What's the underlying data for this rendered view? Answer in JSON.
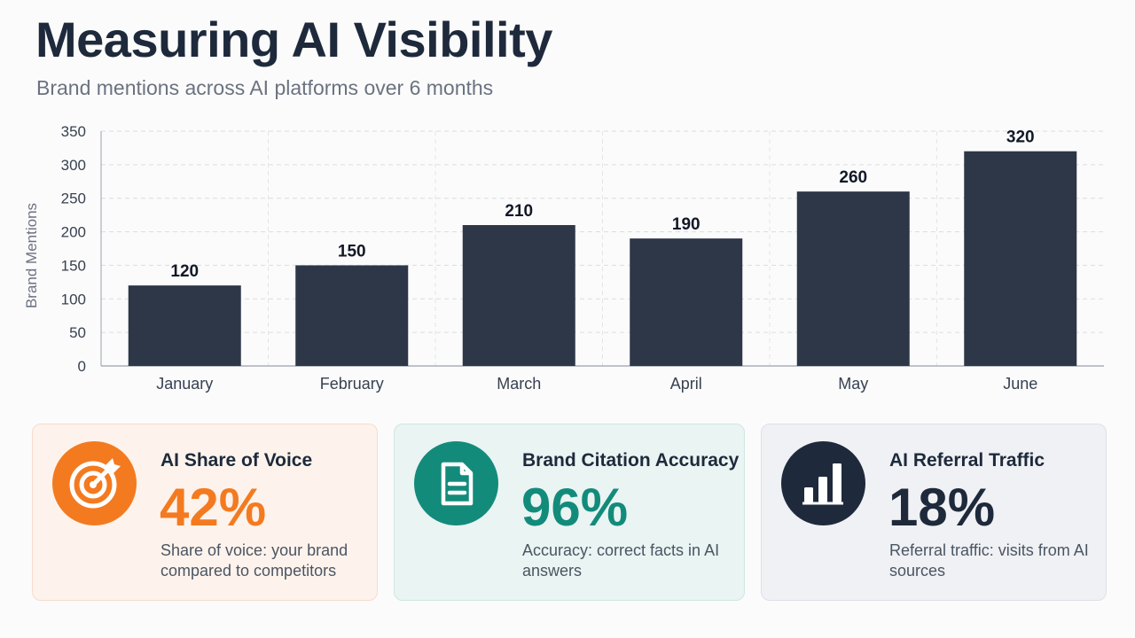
{
  "header": {
    "title": "Measuring AI Visibility",
    "subtitle": "Brand mentions across AI platforms over 6 months"
  },
  "chart_data": {
    "type": "bar",
    "categories": [
      "January",
      "February",
      "March",
      "April",
      "May",
      "June"
    ],
    "values": [
      120,
      150,
      210,
      190,
      260,
      320
    ],
    "data_labels": [
      "120",
      "150",
      "210",
      "190",
      "260",
      "320"
    ],
    "ylabel": "Brand Mentions",
    "ylim": [
      0,
      350
    ],
    "yticks": [
      0,
      50,
      100,
      150,
      200,
      250,
      300,
      350
    ],
    "grid": true,
    "bar_color": "#2d3748"
  },
  "cards": [
    {
      "icon": "target-icon",
      "title": "AI Share of Voice",
      "value": "42%",
      "description": "Share of voice: your brand compared to competitors",
      "accent": "#f47a20",
      "background": "#fdf3ec",
      "border": "#f8dccb"
    },
    {
      "icon": "document-icon",
      "title": "Brand Citation Accuracy",
      "value": "96%",
      "description": "Accuracy: correct facts in AI answers",
      "accent": "#138b7b",
      "background": "#e9f4f3",
      "border": "#cfe6e3"
    },
    {
      "icon": "bar-chart-icon",
      "title": "AI Referral Traffic",
      "value": "18%",
      "description": "Referral traffic: visits from AI sources",
      "accent": "#1e2a3b",
      "background": "#eff1f4",
      "border": "#dde1e7"
    }
  ]
}
